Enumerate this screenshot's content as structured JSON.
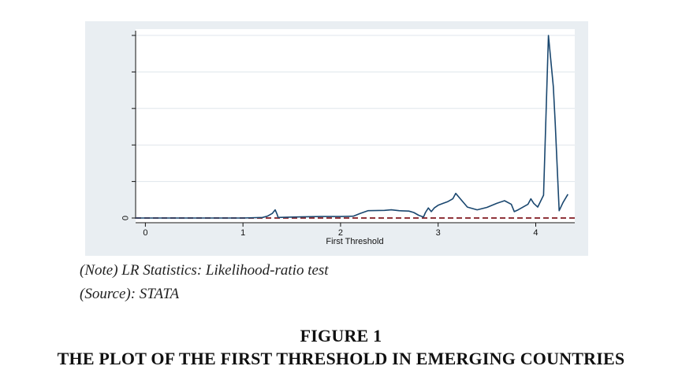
{
  "chart_data": {
    "type": "line",
    "xlabel": "First Threshold",
    "ylabel": "",
    "xlim": [
      -0.1,
      4.4
    ],
    "ylim": [
      0,
      100
    ],
    "x_ticks": [
      0,
      1,
      2,
      3,
      4
    ],
    "y_tick_labels": [
      "0"
    ],
    "y_tick_values": [
      0,
      20,
      40,
      60,
      80,
      100
    ],
    "grid": true,
    "colors": {
      "line": "#1a476f",
      "reference": "#90353b",
      "grid": "#dfe6ec",
      "panel": "#e9eef2"
    },
    "series": [
      {
        "x": [
          -0.1,
          1.0,
          1.2,
          1.25,
          1.3,
          1.33,
          1.35,
          1.36,
          1.5,
          1.8,
          2.0,
          2.13,
          2.2,
          2.28,
          2.45,
          2.52,
          2.6,
          2.7,
          2.75,
          2.8,
          2.85,
          2.87,
          2.9,
          2.93,
          2.96,
          3.0,
          3.05,
          3.1,
          3.15,
          3.18,
          3.22,
          3.3,
          3.4,
          3.5,
          3.6,
          3.68,
          3.75,
          3.78,
          3.82,
          3.87,
          3.92,
          3.95,
          3.98,
          4.02,
          4.08,
          4.13,
          4.18,
          4.2,
          4.24,
          4.28,
          4.33
        ],
        "y": [
          0,
          0,
          0.3,
          1,
          2.5,
          4.5,
          2,
          0.3,
          0.5,
          0.8,
          0.8,
          1,
          2.5,
          4,
          4.2,
          4.5,
          4,
          3.8,
          3,
          1.5,
          0.5,
          3,
          5.5,
          3.5,
          5.5,
          7,
          8,
          9,
          10.5,
          13.5,
          11,
          6,
          4.5,
          5.8,
          8,
          9.5,
          7.5,
          3.5,
          4.5,
          6,
          7.5,
          10.5,
          8,
          6,
          12.5,
          100,
          72,
          52,
          4,
          8.5,
          13
        ]
      }
    ]
  },
  "notes": {
    "line1": "(Note) LR Statistics: Likelihood-ratio test",
    "line2": "(Source): STATA"
  },
  "caption": {
    "figure_label": "FIGURE 1",
    "title": "THE PLOT OF THE FIRST THRESHOLD IN EMERGING COUNTRIES"
  }
}
